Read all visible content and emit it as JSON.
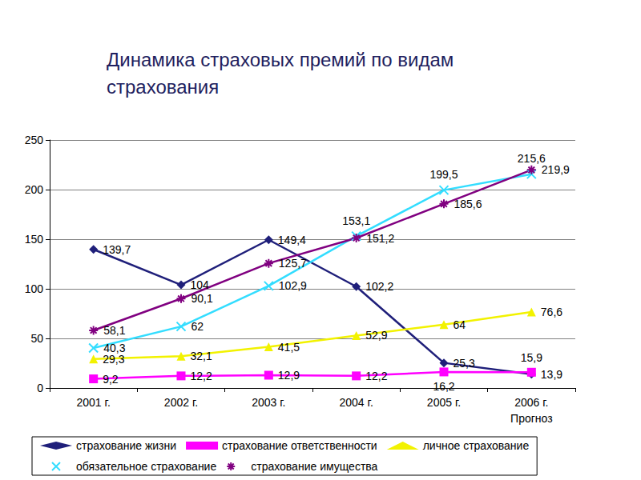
{
  "chart_data": {
    "type": "line",
    "title": "Динамика страховых премий по видам\nстрахования",
    "categories": [
      "2001 г.",
      "2002 г.",
      "2003 г.",
      "2004 г.",
      "2005 г.",
      "2006 г.\nПрогноз"
    ],
    "series": [
      {
        "name": "страхование жизни",
        "color": "#1f1f7a",
        "marker": "diamond",
        "values": [
          139.7,
          104,
          149.4,
          102.2,
          25.3,
          13.9
        ],
        "value_labels": [
          "139,7",
          "104",
          "149,4",
          "102,2",
          "25,3",
          "13,9"
        ]
      },
      {
        "name": "страхование ответственности",
        "color": "#ff00ff",
        "marker": "square",
        "values": [
          9.2,
          12.2,
          12.9,
          12.2,
          16.2,
          15.9
        ],
        "value_labels": [
          "9,2",
          "12,2",
          "12,9",
          "12,2",
          "16,2",
          "15,9"
        ]
      },
      {
        "name": "личное страхование",
        "color": "#f2f200",
        "marker": "triangle",
        "values": [
          29.3,
          32.1,
          41.5,
          52.9,
          64,
          76.6
        ],
        "value_labels": [
          "29,3",
          "32,1",
          "41,5",
          "52,9",
          "64",
          "76,6"
        ]
      },
      {
        "name": "обязательное страхование",
        "color": "#33ddff",
        "marker": "x",
        "values": [
          40.3,
          62,
          102.9,
          153.1,
          199.5,
          215.6
        ],
        "value_labels": [
          "40,3",
          "62",
          "102,9",
          "153,1",
          "199,5",
          "215,6"
        ]
      },
      {
        "name": "страхование имущества",
        "color": "#800080",
        "marker": "star",
        "values": [
          58.1,
          90.1,
          125.7,
          151.2,
          185.6,
          219.9
        ],
        "value_labels": [
          "58,1",
          "90,1",
          "125,7",
          "151,2",
          "185,6",
          "219,9"
        ]
      }
    ],
    "ylim": [
      0,
      250
    ],
    "yticks": [
      0,
      50,
      100,
      150,
      200,
      250
    ],
    "grid": true,
    "legend": "bottom",
    "data_labels": true
  }
}
